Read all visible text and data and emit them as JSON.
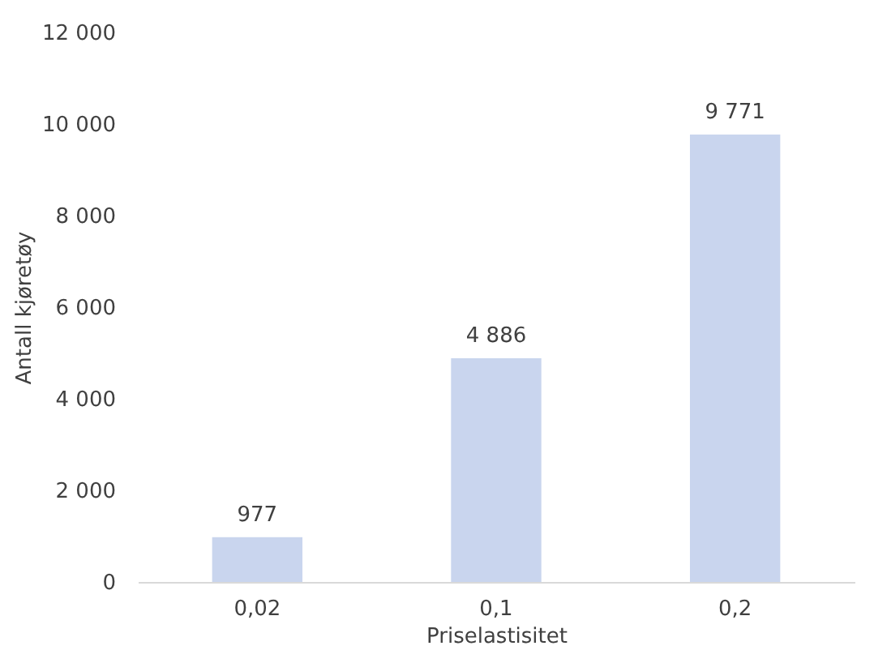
{
  "chart_data": {
    "type": "bar",
    "xlabel": "Priselastisitet",
    "ylabel": "Antall kjøretøy",
    "categories": [
      "0,02",
      "0,1",
      "0,2"
    ],
    "values": [
      977,
      4886,
      9771
    ],
    "color": "#c9d5ee",
    "value_labels": [
      "977",
      "4 886",
      "9 771"
    ],
    "ylim": [
      0,
      12000
    ],
    "yticks": [
      {
        "value": 0,
        "label": "0"
      },
      {
        "value": 2000,
        "label": "2 000"
      },
      {
        "value": 4000,
        "label": "4 000"
      },
      {
        "value": 6000,
        "label": "6 000"
      },
      {
        "value": 8000,
        "label": "8 000"
      },
      {
        "value": 10000,
        "label": "10 000"
      },
      {
        "value": 12000,
        "label": "12 000"
      }
    ],
    "grid": false
  }
}
